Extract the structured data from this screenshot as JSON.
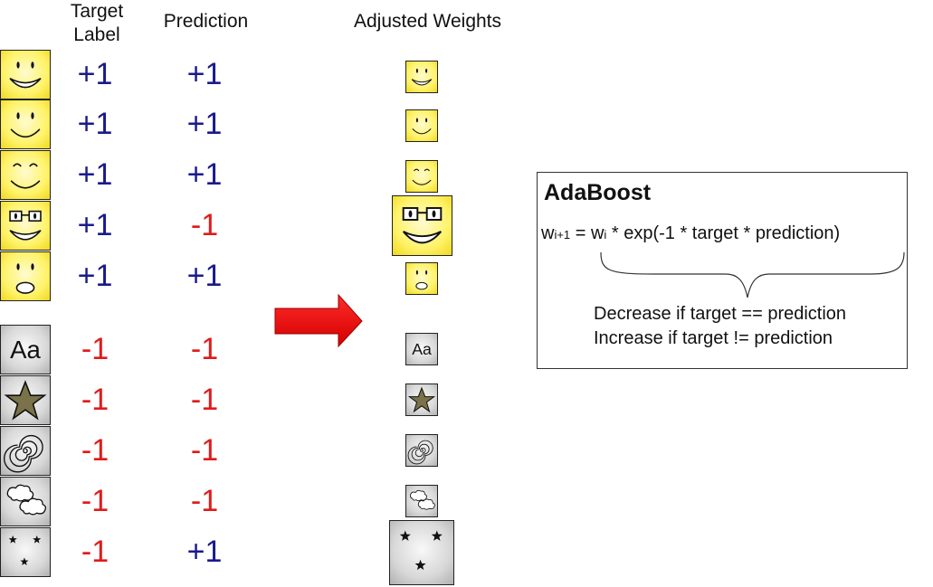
{
  "headers": {
    "target_label": "Target Label",
    "prediction": "Prediction",
    "adjusted_weights": "Adjusted Weights"
  },
  "rows": [
    {
      "icon": "smiley-grin-icon",
      "target": "+1",
      "prediction": "+1"
    },
    {
      "icon": "smiley-smile-icon",
      "target": "+1",
      "prediction": "+1"
    },
    {
      "icon": "smiley-happy-eyes-icon",
      "target": "+1",
      "prediction": "+1"
    },
    {
      "icon": "smiley-glasses-icon",
      "target": "+1",
      "prediction": "-1"
    },
    {
      "icon": "smiley-surprised-icon",
      "target": "+1",
      "prediction": "+1"
    },
    {
      "icon": "text-aa-icon",
      "target": "-1",
      "prediction": "-1"
    },
    {
      "icon": "star-icon",
      "target": "-1",
      "prediction": "-1"
    },
    {
      "icon": "spiral-icon",
      "target": "-1",
      "prediction": "-1"
    },
    {
      "icon": "clouds-icon",
      "target": "-1",
      "prediction": "-1"
    },
    {
      "icon": "three-stars-icon",
      "target": "-1",
      "prediction": "+1"
    }
  ],
  "adaboost": {
    "title": "AdaBoost",
    "formula_w": "w",
    "formula_sub_next": "i+1",
    "formula_eq": " = w",
    "formula_sub_i": "i",
    "formula_rest": " * exp(-1 * target * prediction)",
    "decrease_note": "Decrease if target == prediction",
    "increase_note": "Increase if target != prediction"
  },
  "colors": {
    "positive": "#1a1a8c",
    "negative": "#e01b1b",
    "arrow": "#ee0000",
    "face_fill": "#fff36a",
    "gray_fill": "#d8d8d8"
  }
}
